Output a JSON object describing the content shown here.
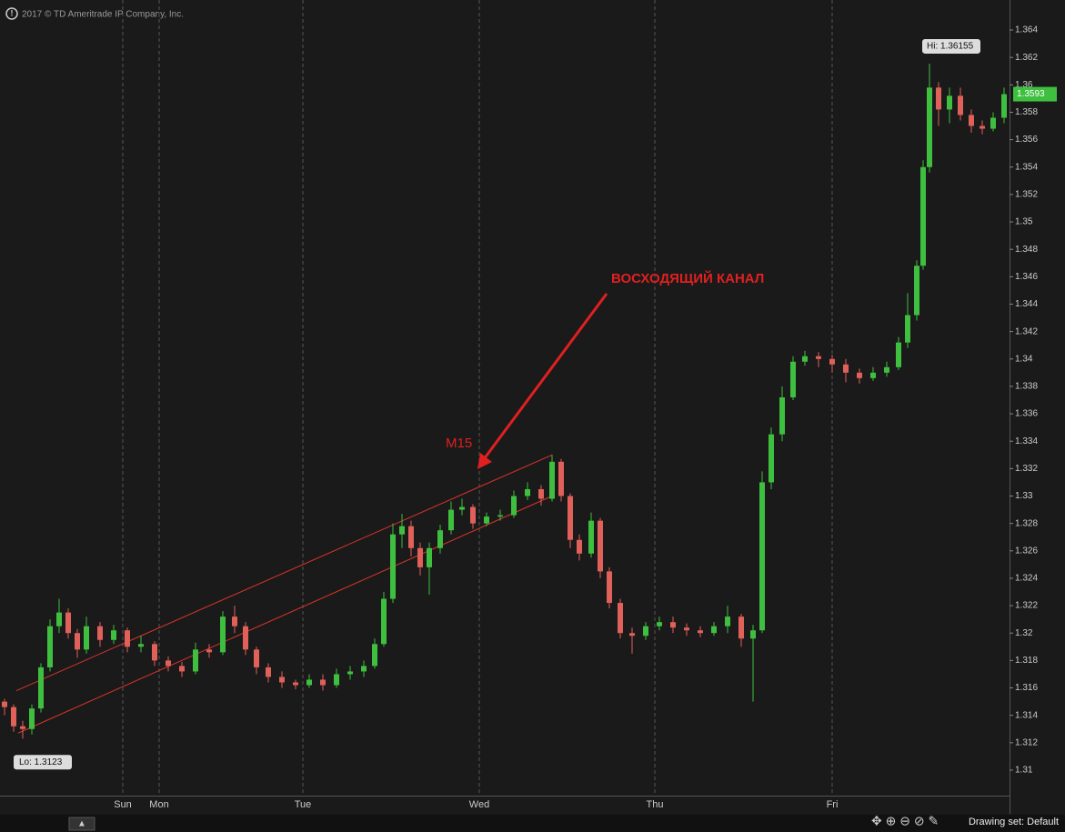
{
  "chart_data": {
    "type": "candlestick",
    "copyright": "2017 © TD Ameritrade IP Company, Inc.",
    "annotations": [
      "ВОСХОДЯЩИЙ КАНАЛ",
      "M15"
    ],
    "hi_label": "Hi: 1.36155",
    "lo_label": "Lo: 1.3123",
    "last_price_label": "1.3593",
    "footer": "Drawing set: Default",
    "up_color": "#3fbf3f",
    "down_color": "#e0605a",
    "x": [
      5,
      15,
      25,
      35,
      45,
      55,
      65,
      75,
      85,
      95,
      110,
      125,
      140,
      155,
      170,
      185,
      200,
      215,
      230,
      245,
      258,
      270,
      282,
      295,
      310,
      325,
      340,
      355,
      370,
      385,
      400,
      412,
      422,
      432,
      442,
      452,
      462,
      472,
      484,
      496,
      508,
      520,
      535,
      550,
      565,
      580,
      595,
      607,
      617,
      627,
      637,
      650,
      660,
      670,
      682,
      695,
      710,
      725,
      740,
      755,
      770,
      785,
      800,
      815,
      828,
      838,
      848,
      860,
      872,
      885,
      900,
      915,
      930,
      945,
      960,
      975,
      988,
      998,
      1008,
      1015,
      1022,
      1032,
      1044,
      1056,
      1068,
      1080,
      1092,
      1104
    ],
    "open": [
      1.315,
      1.3146,
      1.3132,
      1.313,
      1.3145,
      1.3175,
      1.3205,
      1.3215,
      1.32,
      1.3188,
      1.3205,
      1.3195,
      1.3202,
      1.319,
      1.3192,
      1.318,
      1.3176,
      1.3172,
      1.3188,
      1.3186,
      1.3212,
      1.3205,
      1.3188,
      1.3175,
      1.3168,
      1.3164,
      1.3162,
      1.3166,
      1.3162,
      1.317,
      1.3172,
      1.3176,
      1.3192,
      1.3225,
      1.3272,
      1.3278,
      1.3262,
      1.3248,
      1.3262,
      1.3275,
      1.329,
      1.3292,
      1.328,
      1.3285,
      1.3286,
      1.33,
      1.3305,
      1.3298,
      1.3325,
      1.33,
      1.3268,
      1.3258,
      1.3282,
      1.3245,
      1.3222,
      1.32,
      1.3198,
      1.3205,
      1.3208,
      1.3204,
      1.3202,
      1.32,
      1.3205,
      1.3212,
      1.3196,
      1.3202,
      1.331,
      1.3345,
      1.3372,
      1.3398,
      1.3402,
      1.34,
      1.3396,
      1.339,
      1.3386,
      1.339,
      1.3394,
      1.3412,
      1.3432,
      1.3468,
      1.354,
      1.3598,
      1.3582,
      1.3592,
      1.3578,
      1.357,
      1.3568,
      1.3576
    ],
    "high": [
      1.3152,
      1.3148,
      1.3136,
      1.3148,
      1.3178,
      1.321,
      1.3225,
      1.3218,
      1.3203,
      1.3212,
      1.3208,
      1.3206,
      1.3204,
      1.3198,
      1.3194,
      1.3183,
      1.3179,
      1.3193,
      1.3192,
      1.3216,
      1.322,
      1.3208,
      1.319,
      1.3178,
      1.3172,
      1.3166,
      1.317,
      1.317,
      1.3174,
      1.3176,
      1.318,
      1.3196,
      1.323,
      1.328,
      1.3287,
      1.3282,
      1.3266,
      1.3266,
      1.3279,
      1.3296,
      1.3298,
      1.3294,
      1.3288,
      1.329,
      1.3304,
      1.331,
      1.3308,
      1.333,
      1.3327,
      1.3302,
      1.3272,
      1.3288,
      1.3284,
      1.3248,
      1.3225,
      1.3204,
      1.3208,
      1.3212,
      1.3212,
      1.3207,
      1.3205,
      1.3208,
      1.322,
      1.3214,
      1.3206,
      1.3318,
      1.335,
      1.338,
      1.3402,
      1.3406,
      1.3405,
      1.3403,
      1.34,
      1.3393,
      1.3394,
      1.3398,
      1.3416,
      1.3448,
      1.3472,
      1.3545,
      1.36155,
      1.3602,
      1.3598,
      1.3598,
      1.3582,
      1.3574,
      1.358,
      1.3598
    ],
    "low": [
      1.314,
      1.3128,
      1.3123,
      1.3126,
      1.3142,
      1.3172,
      1.32,
      1.3196,
      1.3182,
      1.3185,
      1.319,
      1.3192,
      1.3186,
      1.3186,
      1.3176,
      1.3172,
      1.3168,
      1.317,
      1.3182,
      1.3184,
      1.32,
      1.3184,
      1.317,
      1.3164,
      1.316,
      1.3159,
      1.316,
      1.3158,
      1.316,
      1.3166,
      1.3168,
      1.3174,
      1.319,
      1.3222,
      1.3262,
      1.3256,
      1.3242,
      1.3228,
      1.3258,
      1.3272,
      1.3286,
      1.3276,
      1.3278,
      1.3282,
      1.3284,
      1.3297,
      1.3293,
      1.3296,
      1.3296,
      1.3262,
      1.3253,
      1.3255,
      1.324,
      1.3218,
      1.3196,
      1.3185,
      1.3195,
      1.3202,
      1.32,
      1.3198,
      1.3197,
      1.3198,
      1.32,
      1.319,
      1.315,
      1.32,
      1.3305,
      1.334,
      1.337,
      1.3395,
      1.3394,
      1.339,
      1.3383,
      1.3382,
      1.3384,
      1.3387,
      1.3392,
      1.3408,
      1.3428,
      1.3465,
      1.3536,
      1.357,
      1.3572,
      1.3574,
      1.3565,
      1.3564,
      1.3566,
      1.3572
    ],
    "close": [
      1.3146,
      1.3132,
      1.313,
      1.3145,
      1.3175,
      1.3205,
      1.3215,
      1.32,
      1.3188,
      1.3205,
      1.3195,
      1.3202,
      1.319,
      1.3192,
      1.318,
      1.3176,
      1.3172,
      1.3188,
      1.3186,
      1.3212,
      1.3205,
      1.3188,
      1.3175,
      1.3168,
      1.3164,
      1.3162,
      1.3166,
      1.3162,
      1.317,
      1.3172,
      1.3176,
      1.3192,
      1.3225,
      1.3272,
      1.3278,
      1.3262,
      1.3248,
      1.3262,
      1.3275,
      1.329,
      1.3292,
      1.328,
      1.3285,
      1.3286,
      1.33,
      1.3305,
      1.3298,
      1.3325,
      1.33,
      1.3268,
      1.3258,
      1.3282,
      1.3245,
      1.3222,
      1.32,
      1.3198,
      1.3205,
      1.3208,
      1.3204,
      1.3202,
      1.32,
      1.3205,
      1.3212,
      1.3196,
      1.3202,
      1.331,
      1.3345,
      1.3372,
      1.3398,
      1.3402,
      1.34,
      1.3396,
      1.339,
      1.3386,
      1.339,
      1.3394,
      1.3412,
      1.3432,
      1.3468,
      1.354,
      1.3598,
      1.3582,
      1.3592,
      1.3578,
      1.357,
      1.3568,
      1.3576,
      1.35932
    ],
    "trendlines": [
      {
        "color": "#d9342b",
        "x": [
          18,
          607
        ],
        "y": [
          1.3158,
          1.333
        ]
      },
      {
        "color": "#d9342b",
        "x": [
          20,
          607
        ],
        "y": [
          1.3127,
          1.33
        ]
      }
    ],
    "xlim": [
      0,
      1110
    ],
    "xticks": [
      {
        "value": 135,
        "label": "Sun"
      },
      {
        "value": 175,
        "label": "Mon"
      },
      {
        "value": 333,
        "label": "Tue"
      },
      {
        "value": 527,
        "label": "Wed"
      },
      {
        "value": 720,
        "label": "Thu"
      },
      {
        "value": 915,
        "label": "Fri"
      }
    ],
    "ylim": [
      1.30814,
      1.36619
    ],
    "yticks": [
      1.31,
      1.312,
      1.314,
      1.316,
      1.318,
      1.32,
      1.322,
      1.324,
      1.326,
      1.328,
      1.33,
      1.332,
      1.334,
      1.336,
      1.338,
      1.34,
      1.342,
      1.344,
      1.346,
      1.348,
      1.35,
      1.352,
      1.354,
      1.356,
      1.358,
      1.36,
      1.362,
      1.364
    ]
  }
}
